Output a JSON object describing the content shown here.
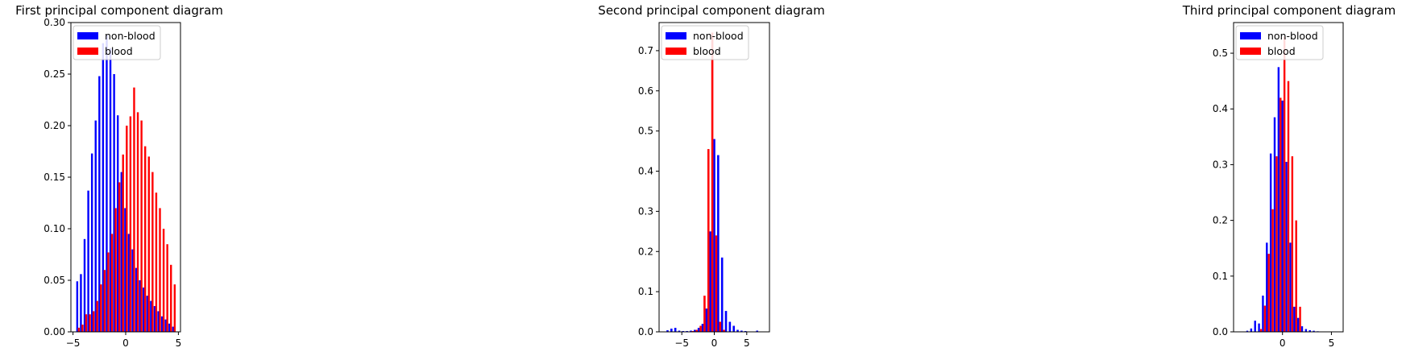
{
  "chart_data": [
    {
      "type": "bar",
      "title": "First principal component diagram",
      "xlim": [
        -5.2,
        5.2
      ],
      "ylim": [
        0,
        0.3
      ],
      "xticks": [
        -5,
        0,
        5
      ],
      "xtick_labels": [
        "−5",
        "0",
        "5"
      ],
      "yticks": [
        0,
        0.05,
        0.1,
        0.15,
        0.2,
        0.25,
        0.3
      ],
      "ytick_labels": [
        "0.00",
        "0.05",
        "0.10",
        "0.15",
        "0.20",
        "0.25",
        "0.30"
      ],
      "legend": "upper-left",
      "grid": false,
      "series": [
        {
          "name": "non-blood",
          "color": "#0000ff",
          "x": [
            -4.6,
            -4.25,
            -3.9,
            -3.55,
            -3.2,
            -2.85,
            -2.5,
            -2.15,
            -1.8,
            -1.45,
            -1.1,
            -0.75,
            -0.4,
            -0.05,
            0.3,
            0.65,
            1.0,
            1.35,
            1.7,
            2.05,
            2.4,
            2.75,
            3.1,
            3.45,
            3.8,
            4.15,
            4.5
          ],
          "values": [
            0.049,
            0.056,
            0.09,
            0.137,
            0.173,
            0.205,
            0.248,
            0.28,
            0.288,
            0.275,
            0.25,
            0.21,
            0.155,
            0.12,
            0.095,
            0.08,
            0.062,
            0.05,
            0.043,
            0.035,
            0.03,
            0.025,
            0.02,
            0.015,
            0.012,
            0.008,
            0.005
          ]
        },
        {
          "name": "blood",
          "color": "#ff0000",
          "x": [
            -4.45,
            -4.1,
            -3.75,
            -3.4,
            -3.05,
            -2.7,
            -2.35,
            -2.0,
            -1.65,
            -1.3,
            -0.95,
            -0.6,
            -0.25,
            0.1,
            0.45,
            0.8,
            1.15,
            1.5,
            1.85,
            2.2,
            2.55,
            2.9,
            3.25,
            3.6,
            3.95,
            4.3,
            4.65
          ],
          "values": [
            0.004,
            0.007,
            0.017,
            0.017,
            0.02,
            0.03,
            0.046,
            0.06,
            0.077,
            0.095,
            0.12,
            0.145,
            0.172,
            0.2,
            0.209,
            0.237,
            0.213,
            0.205,
            0.18,
            0.17,
            0.155,
            0.135,
            0.12,
            0.1,
            0.085,
            0.065,
            0.046
          ]
        }
      ]
    },
    {
      "type": "bar",
      "title": "Second principal component diagram",
      "xlim": [
        -8.5,
        8.5
      ],
      "ylim": [
        0,
        0.77
      ],
      "xticks": [
        -5,
        0,
        5
      ],
      "xtick_labels": [
        "−5",
        "0",
        "5"
      ],
      "yticks": [
        0,
        0.1,
        0.2,
        0.3,
        0.4,
        0.5,
        0.6,
        0.7
      ],
      "ytick_labels": [
        "0.0",
        "0.1",
        "0.2",
        "0.3",
        "0.4",
        "0.5",
        "0.6",
        "0.7"
      ],
      "legend": "upper-left",
      "grid": false,
      "series": [
        {
          "name": "non-blood",
          "color": "#0000ff",
          "x": [
            -7.2,
            -6.6,
            -6.0,
            -5.4,
            -4.8,
            -4.2,
            -3.6,
            -3.0,
            -2.4,
            -1.8,
            -1.2,
            -0.6,
            0.0,
            0.6,
            1.2,
            1.8,
            2.4,
            3.0,
            3.6,
            4.2,
            4.8,
            5.4,
            6.0,
            6.6
          ],
          "values": [
            0.004,
            0.008,
            0.01,
            0.003,
            0.002,
            0.002,
            0.003,
            0.005,
            0.01,
            0.02,
            0.058,
            0.25,
            0.48,
            0.44,
            0.185,
            0.052,
            0.025,
            0.015,
            0.005,
            0.003,
            0.002,
            0.001,
            0.001,
            0.003
          ]
        },
        {
          "name": "blood",
          "color": "#ff0000",
          "x": [
            -3.3,
            -2.7,
            -2.1,
            -1.5,
            -0.9,
            -0.3,
            0.3,
            0.9,
            1.5
          ],
          "values": [
            0.002,
            0.005,
            0.015,
            0.09,
            0.455,
            0.745,
            0.24,
            0.025,
            0.005
          ]
        }
      ]
    },
    {
      "type": "bar",
      "title": "Third principal component diagram",
      "xlim": [
        -5.0,
        6.2
      ],
      "ylim": [
        0,
        0.555
      ],
      "xticks": [
        0,
        5
      ],
      "xtick_labels": [
        "0",
        "5"
      ],
      "yticks": [
        0,
        0.1,
        0.2,
        0.3,
        0.4,
        0.5
      ],
      "ytick_labels": [
        "0.0",
        "0.1",
        "0.2",
        "0.3",
        "0.4",
        "0.5"
      ],
      "legend": "upper-left",
      "grid": false,
      "series": [
        {
          "name": "non-blood",
          "color": "#0000ff",
          "x": [
            -3.6,
            -3.2,
            -2.8,
            -2.4,
            -2.0,
            -1.6,
            -1.2,
            -0.8,
            -0.4,
            0.0,
            0.4,
            0.8,
            1.2,
            1.6,
            2.0,
            2.4,
            2.8,
            3.2,
            3.6
          ],
          "values": [
            0.002,
            0.006,
            0.02,
            0.015,
            0.065,
            0.16,
            0.32,
            0.385,
            0.475,
            0.415,
            0.305,
            0.16,
            0.045,
            0.025,
            0.01,
            0.005,
            0.003,
            0.002,
            0.001
          ]
        },
        {
          "name": "blood",
          "color": "#ff0000",
          "x": [
            -2.2,
            -1.8,
            -1.4,
            -1.0,
            -0.6,
            -0.2,
            0.2,
            0.6,
            1.0,
            1.4,
            1.8
          ],
          "values": [
            0.005,
            0.047,
            0.14,
            0.22,
            0.315,
            0.42,
            0.53,
            0.45,
            0.315,
            0.2,
            0.045
          ]
        }
      ]
    }
  ]
}
